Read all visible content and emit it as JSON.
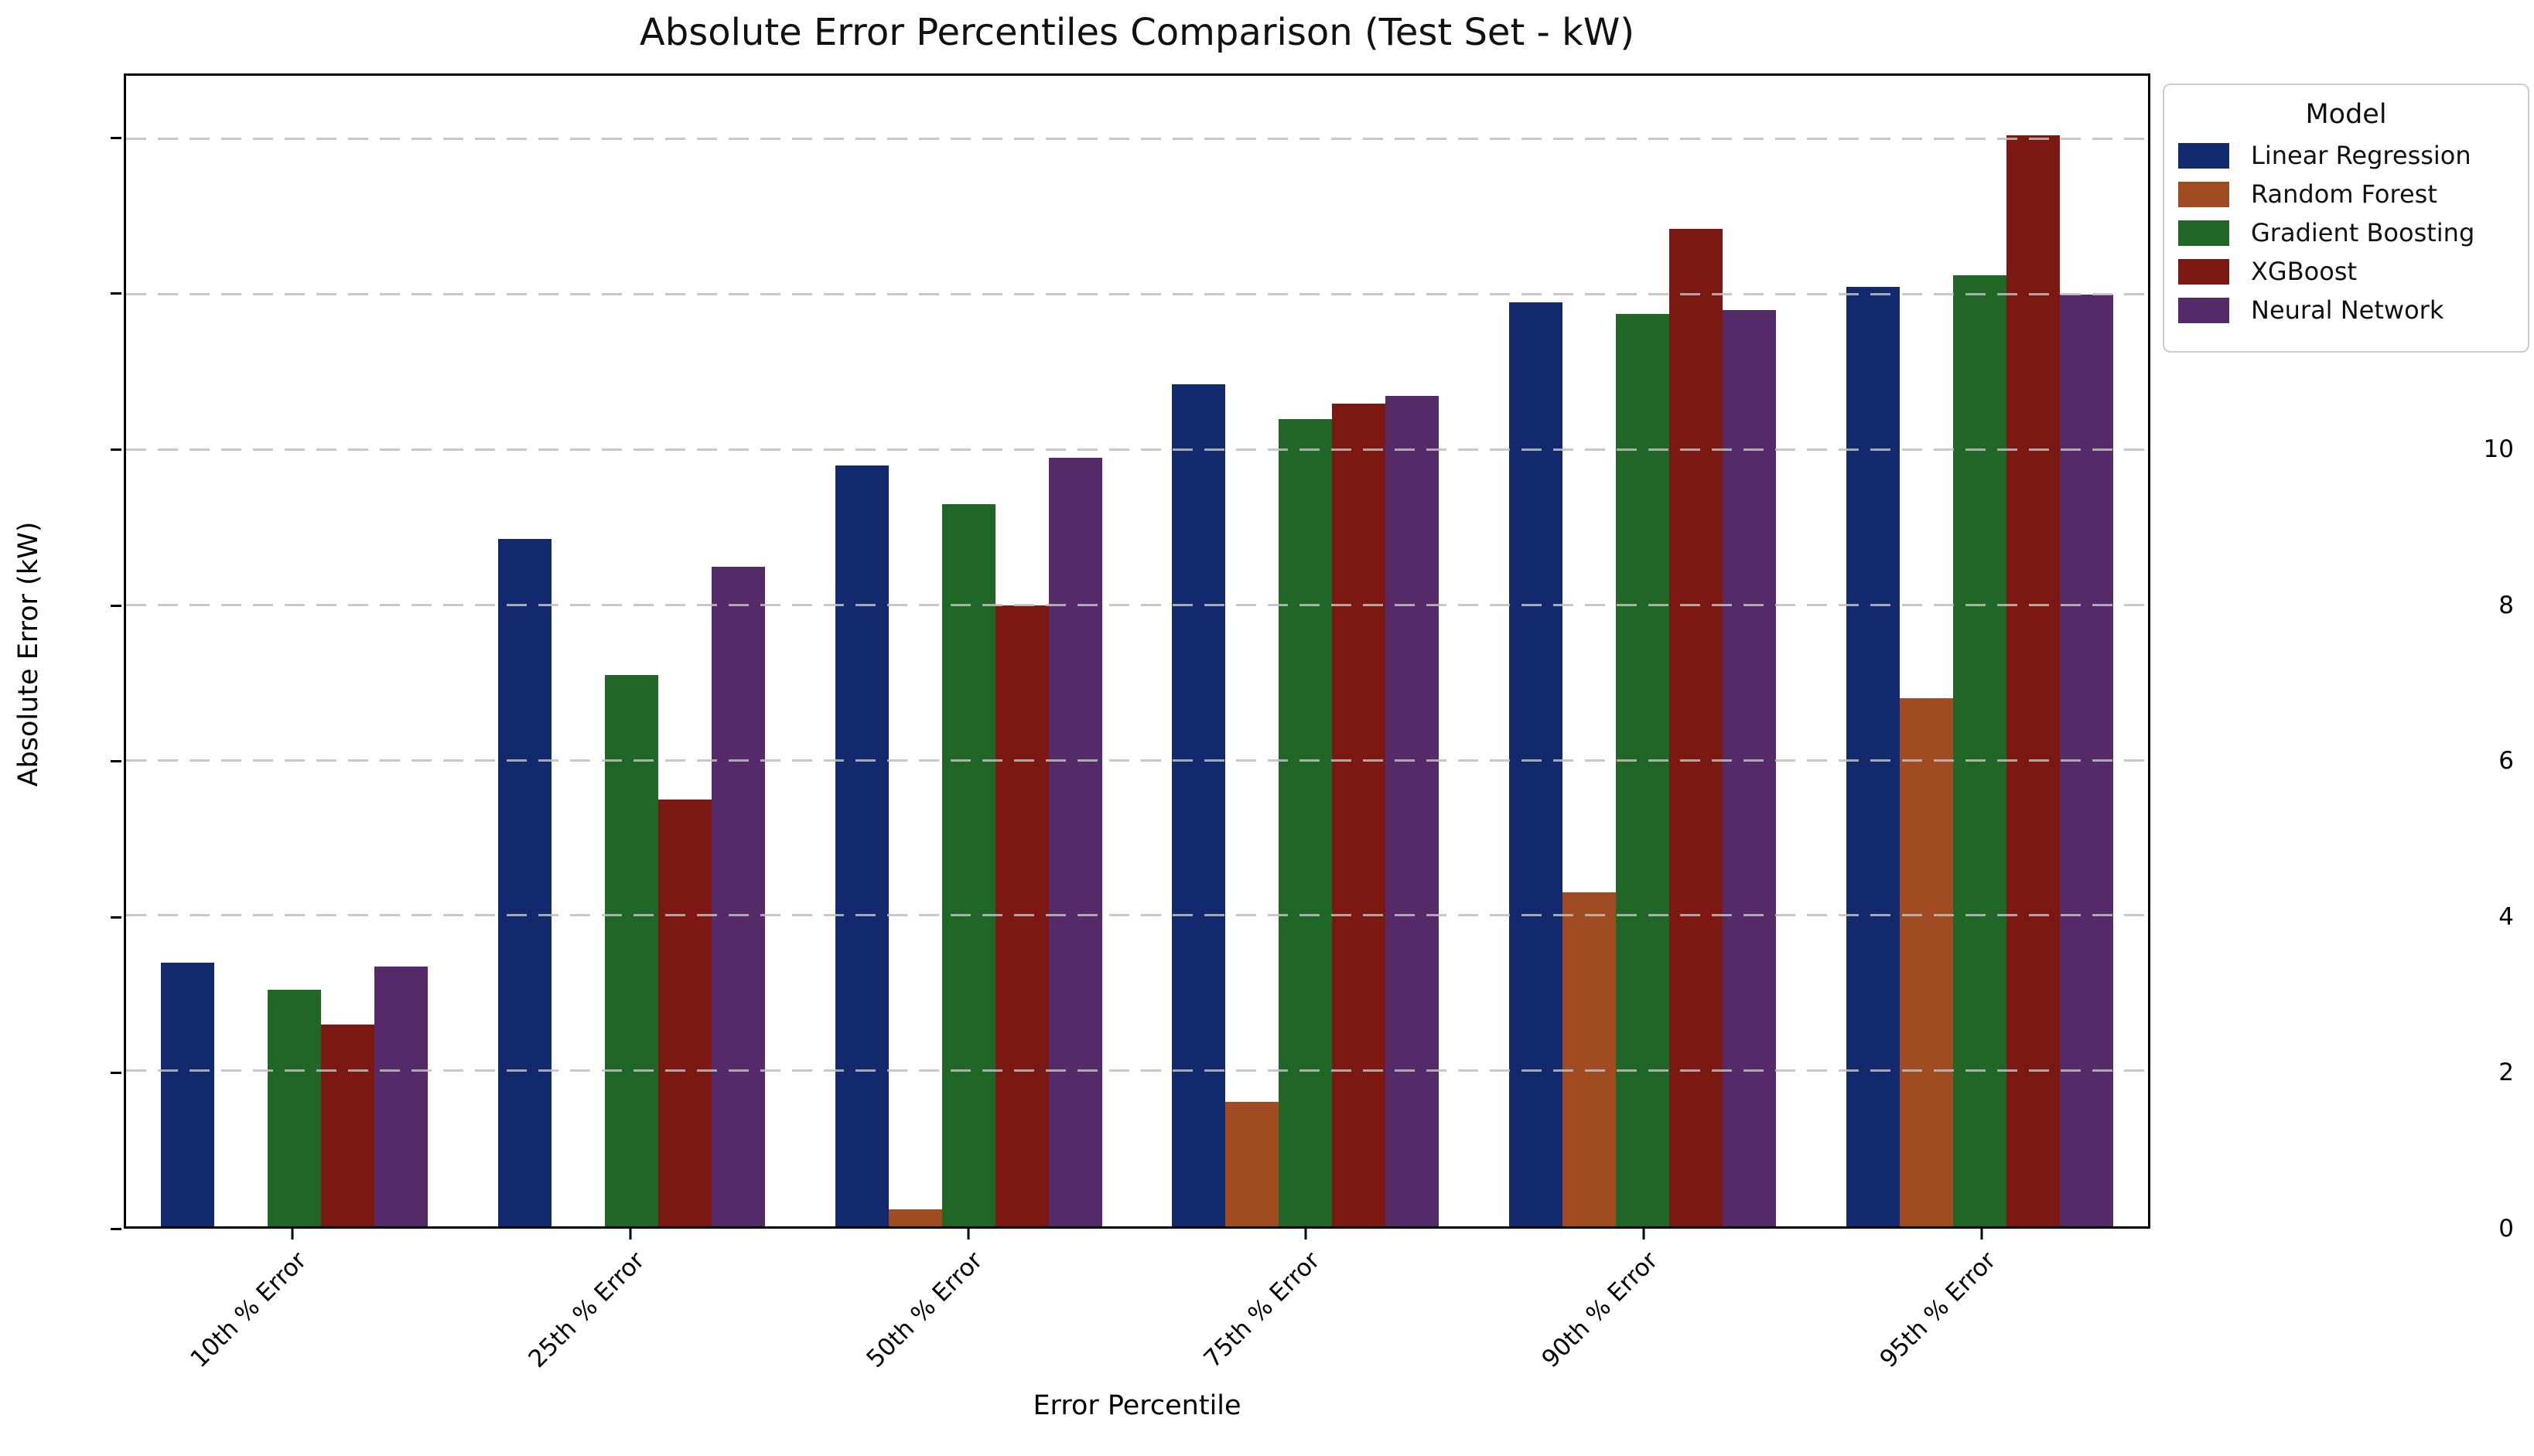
{
  "figure": {
    "title": "Absolute Error Percentiles Comparison (Test Set - kW)",
    "xlabel": "Error Percentile",
    "ylabel": "Absolute Error (kW)"
  },
  "legend": {
    "title": "Model"
  },
  "chart_data": {
    "type": "bar",
    "title": "Absolute Error Percentiles Comparison (Test Set - kW)",
    "xlabel": "Error Percentile",
    "ylabel": "Absolute Error (kW)",
    "categories": [
      "10th % Error",
      "25th % Error",
      "50th % Error",
      "75th % Error",
      "90th % Error",
      "95th % Error"
    ],
    "series": [
      {
        "name": "Linear Regression",
        "color": "#13296e",
        "values": [
          3.4,
          8.85,
          9.8,
          10.85,
          11.9,
          12.1
        ]
      },
      {
        "name": "Random Forest",
        "color": "#a04b22",
        "values": [
          0,
          0,
          0.22,
          1.6,
          4.3,
          6.8
        ]
      },
      {
        "name": "Gradient Boosting",
        "color": "#206626",
        "values": [
          3.05,
          7.1,
          9.3,
          10.4,
          11.75,
          12.25
        ]
      },
      {
        "name": "XGBoost",
        "color": "#7b1812",
        "values": [
          2.6,
          5.5,
          8.0,
          10.6,
          12.85,
          14.05
        ]
      },
      {
        "name": "Neural Network",
        "color": "#552a68",
        "values": [
          3.35,
          8.5,
          9.9,
          10.7,
          11.8,
          12.0
        ]
      }
    ],
    "ylim": [
      0,
      14.82
    ],
    "yticks": [
      0,
      2,
      4,
      6,
      8,
      10,
      12,
      14
    ],
    "grid": "horizontal-dashed-over-bars",
    "legend_title": "Model",
    "legend_position": "upper-right-outside"
  }
}
